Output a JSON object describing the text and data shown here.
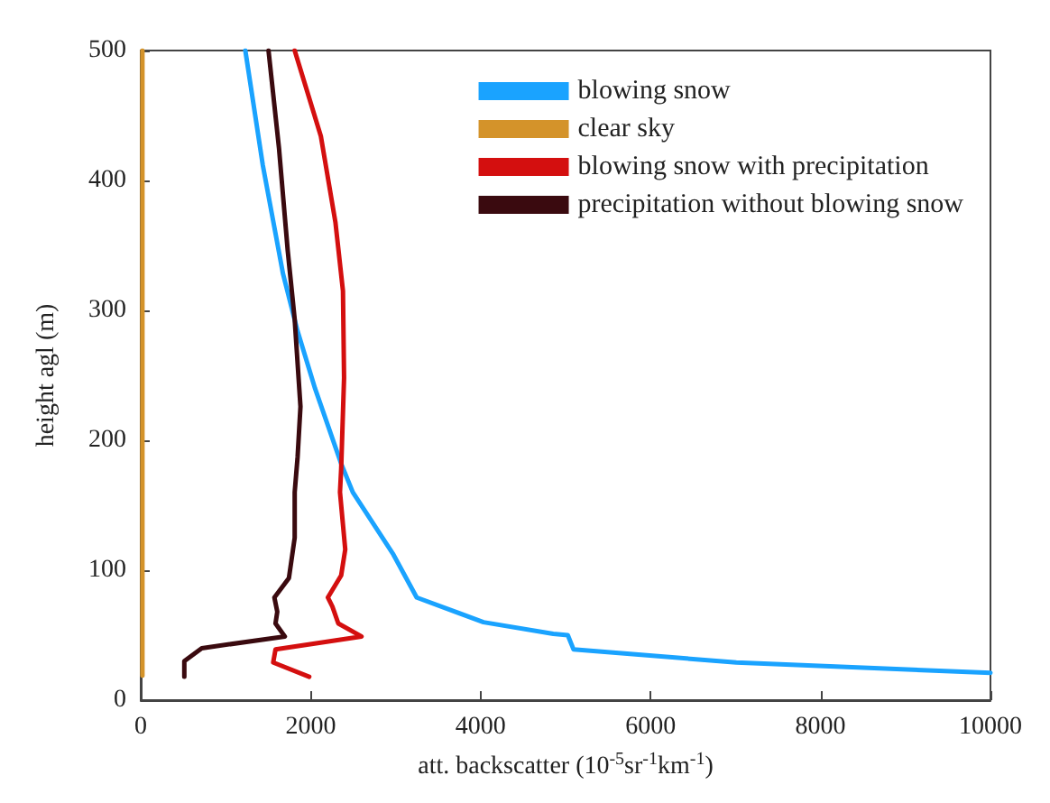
{
  "chart_data": {
    "type": "line",
    "xlabel": "att. backscatter (10$^{-5}$sr$^{-1}$km$^{-1}$)",
    "ylabel": "height agl (m)",
    "xlim": [
      0,
      10000
    ],
    "xticks": [
      0,
      2000,
      4000,
      6000,
      8000,
      10000
    ],
    "ylim": [
      0,
      500
    ],
    "yticks": [
      0,
      100,
      200,
      300,
      400,
      500
    ],
    "grid": false,
    "legend": "top right",
    "marker": "none",
    "line_style": "solid",
    "series": [
      {
        "name": "blowing snow",
        "color": "#1aa3ff",
        "x": [
          1231,
          1436,
          1675,
          1846,
          2051,
          2359,
          2496,
          2974,
          3248,
          4034,
          4855,
          5026,
          5094,
          7009,
          10000
        ],
        "values": [
          500,
          412,
          328,
          284,
          240,
          182,
          160,
          112,
          79,
          60,
          51,
          50,
          39,
          29,
          21
        ]
      },
      {
        "name": "clear sky",
        "color": "#d4932a",
        "x": [
          20,
          20,
          20,
          20,
          20,
          20
        ],
        "values": [
          19,
          100,
          200,
          300,
          400,
          500
        ]
      },
      {
        "name": "blowing snow with precipitation",
        "color": "#d40f0f",
        "x": [
          1812,
          2120,
          2291,
          2380,
          2393,
          2359,
          2345,
          2407,
          2359,
          2202,
          2256,
          2325,
          2598,
          1586,
          1559,
          1983
        ],
        "values": [
          500,
          434,
          368,
          315,
          248,
          178,
          160,
          116,
          96,
          79,
          72,
          59,
          49,
          39,
          29,
          18
        ]
      },
      {
        "name": "precipitation without blowing snow",
        "color": "#3a0a0f",
        "x": [
          1504,
          1627,
          1730,
          1812,
          1880,
          1846,
          1812,
          1812,
          1744,
          1573,
          1607,
          1586,
          1696,
          718,
          513,
          513
        ],
        "values": [
          500,
          425,
          346,
          293,
          226,
          187,
          160,
          125,
          94,
          79,
          68,
          59,
          49,
          40,
          30,
          18
        ]
      }
    ]
  }
}
